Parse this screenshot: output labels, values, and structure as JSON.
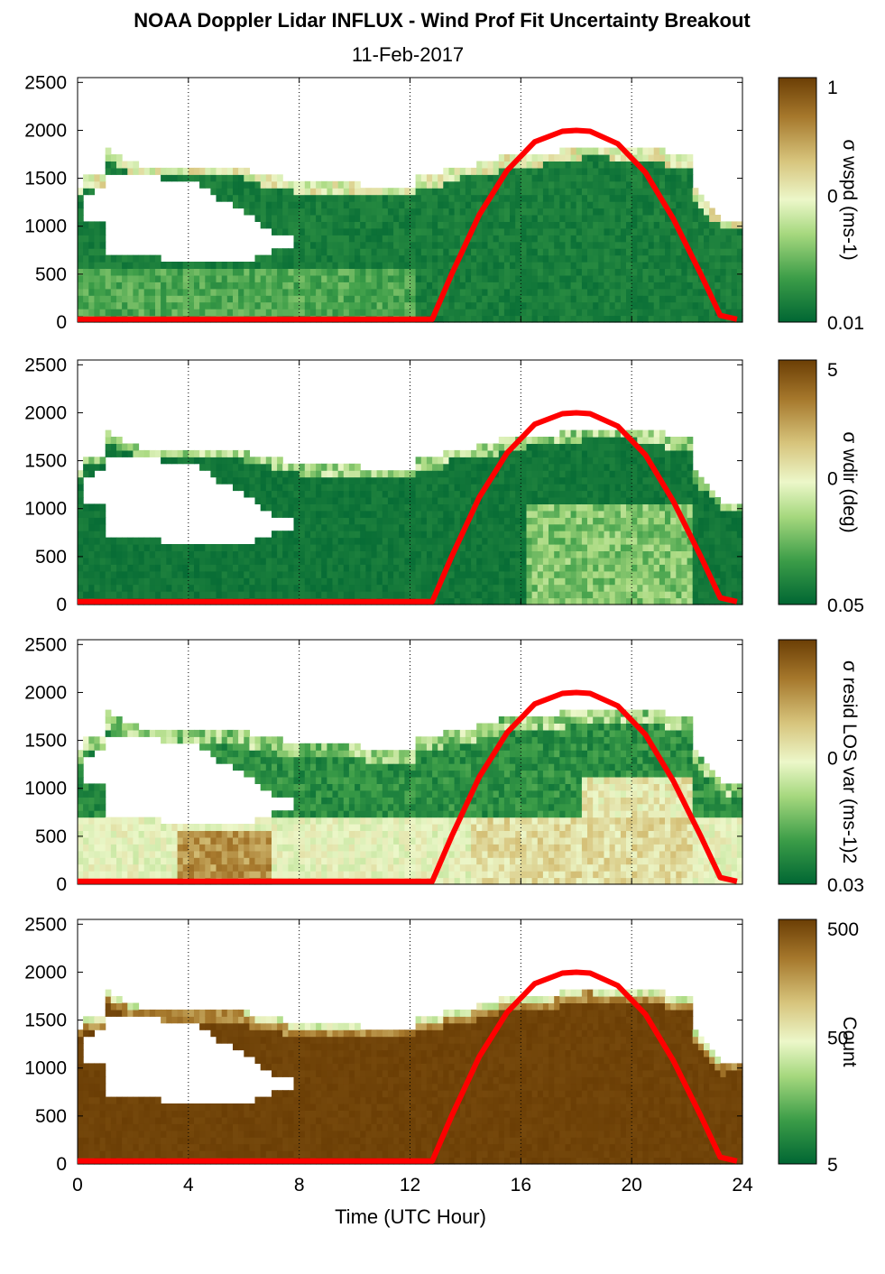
{
  "title": "NOAA Doppler Lidar INFLUX - Wind Prof Fit Uncertainty Breakout",
  "subtitle": "11-Feb-2017",
  "xlabel": "Time (UTC Hour)",
  "colors": {
    "sun_curve": "#ff0000",
    "colormap": [
      "#006633",
      "#3c9d48",
      "#a6d87e",
      "#ecf7c9",
      "#d7c47c",
      "#a6782c",
      "#6b3e05"
    ]
  },
  "chart_data": [
    {
      "type": "heatmap",
      "name": "wspd",
      "colorbar_label": "σ wspd (ms-1)",
      "colorbar_ticks": [
        "1",
        "0",
        "0.01"
      ],
      "x": {
        "ticks": [
          0,
          4,
          8,
          12,
          16,
          20,
          24
        ],
        "range": [
          0,
          24
        ]
      },
      "y": {
        "ticks": [
          0,
          500,
          1000,
          1500,
          2000,
          2500
        ],
        "range": [
          0,
          2550
        ]
      },
      "grid": "dotted vertical"
    },
    {
      "type": "heatmap",
      "name": "wdir",
      "colorbar_label": "σ wdir (deg)",
      "colorbar_ticks": [
        "5",
        "0",
        "0.05"
      ],
      "x": {
        "ticks": [
          0,
          4,
          8,
          12,
          16,
          20,
          24
        ],
        "range": [
          0,
          24
        ]
      },
      "y": {
        "ticks": [
          0,
          500,
          1000,
          1500,
          2000,
          2500
        ],
        "range": [
          0,
          2550
        ]
      },
      "grid": "dotted vertical"
    },
    {
      "type": "heatmap",
      "name": "resid",
      "colorbar_label": "σ resid LOS var (ms-1)2",
      "colorbar_ticks": [
        "",
        "0",
        "0.03"
      ],
      "x": {
        "ticks": [
          0,
          4,
          8,
          12,
          16,
          20,
          24
        ],
        "range": [
          0,
          24
        ]
      },
      "y": {
        "ticks": [
          0,
          500,
          1000,
          1500,
          2000,
          2500
        ],
        "range": [
          0,
          2550
        ]
      },
      "grid": "dotted vertical"
    },
    {
      "type": "heatmap",
      "name": "count",
      "colorbar_label": "Count",
      "colorbar_ticks": [
        "500",
        "50",
        "5"
      ],
      "x": {
        "ticks": [
          0,
          4,
          8,
          12,
          16,
          20,
          24
        ],
        "range": [
          0,
          24
        ]
      },
      "y": {
        "ticks": [
          0,
          500,
          1000,
          1500,
          2000,
          2500
        ],
        "range": [
          0,
          2550
        ]
      },
      "grid": "dotted vertical"
    }
  ],
  "sun_curve": {
    "x": [
      0,
      12.8,
      13.5,
      14.5,
      15.5,
      16.5,
      17.5,
      18,
      18.5,
      19.5,
      20.5,
      21.5,
      22.5,
      23.2,
      23.8
    ],
    "y": [
      30,
      30,
      500,
      1120,
      1580,
      1880,
      1990,
      2000,
      1990,
      1860,
      1560,
      1080,
      500,
      70,
      30
    ]
  }
}
